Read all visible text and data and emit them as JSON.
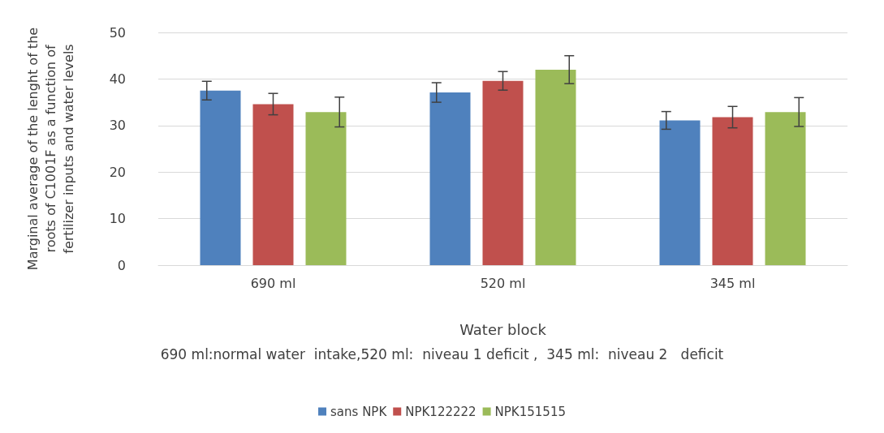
{
  "chart_data": {
    "type": "bar",
    "categories": [
      "690 ml",
      "520 ml",
      "345 ml"
    ],
    "xlabel": "Water block",
    "ylabel": "Marginal average of the lenght of the\nroots of C1001F as a function of\nfertilizer inputs and water levels",
    "annotations": [
      "690 ml:normal water  intake,520 ml:  niveau 1 deficit ,  345 ml:  niveau 2   deficit"
    ],
    "series": [
      {
        "name": "sans NPK",
        "color": "#4f81bd",
        "values": [
          37.5,
          37.1,
          31.1
        ],
        "errors": [
          2,
          2.1,
          1.9
        ]
      },
      {
        "name": "NPK122222",
        "color": "#c0504d",
        "values": [
          34.6,
          39.6,
          31.8
        ],
        "errors": [
          2.3,
          2,
          2.3
        ]
      },
      {
        "name": "NPK151515",
        "color": "#9bbb59",
        "values": [
          32.9,
          42.0,
          32.9
        ],
        "errors": [
          3.2,
          3,
          3.1
        ]
      }
    ],
    "ylim": [
      0,
      50
    ],
    "yticks": [
      0,
      10,
      20,
      30,
      40,
      50
    ],
    "grid": "y",
    "legend": "bottom"
  }
}
